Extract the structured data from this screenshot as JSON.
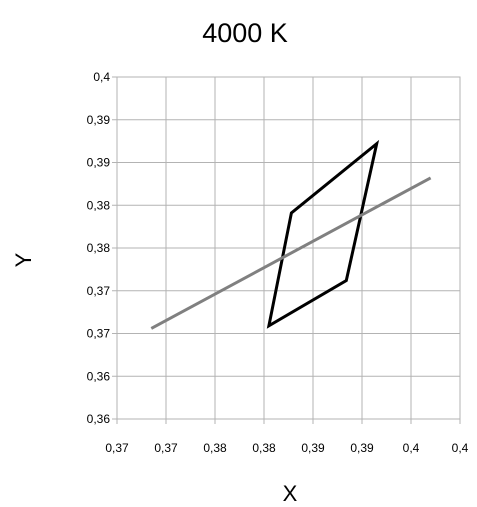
{
  "chart_data": {
    "type": "line",
    "title": "4000 K",
    "xlabel": "X",
    "ylabel": "Y",
    "xlim": [
      0.365,
      0.4
    ],
    "ylim": [
      0.36,
      0.4
    ],
    "x_tick_values": [
      0.365,
      0.37,
      0.375,
      0.38,
      0.385,
      0.39,
      0.395,
      0.4
    ],
    "x_tick_labels": [
      "0,37",
      "0,37",
      "0,38",
      "0,38",
      "0,39",
      "0,39",
      "0,4",
      "0,4"
    ],
    "y_tick_values": [
      0.36,
      0.365,
      0.37,
      0.375,
      0.38,
      0.385,
      0.39,
      0.395,
      0.4
    ],
    "y_tick_labels": [
      "0,36",
      "0,36",
      "0,37",
      "0,37",
      "0,38",
      "0,38",
      "0,39",
      "0,39",
      "0,4"
    ],
    "grid": true,
    "legend": "none",
    "series": [
      {
        "color": "#000000",
        "closed": true,
        "points": [
          {
            "x": 0.3805,
            "y": 0.3709
          },
          {
            "x": 0.3828,
            "y": 0.3841
          },
          {
            "x": 0.3915,
            "y": 0.3922
          },
          {
            "x": 0.3884,
            "y": 0.3762
          }
        ]
      },
      {
        "color": "#808080",
        "closed": false,
        "points": [
          {
            "x": 0.3685,
            "y": 0.3706
          },
          {
            "x": 0.397,
            "y": 0.3882
          }
        ]
      }
    ]
  }
}
